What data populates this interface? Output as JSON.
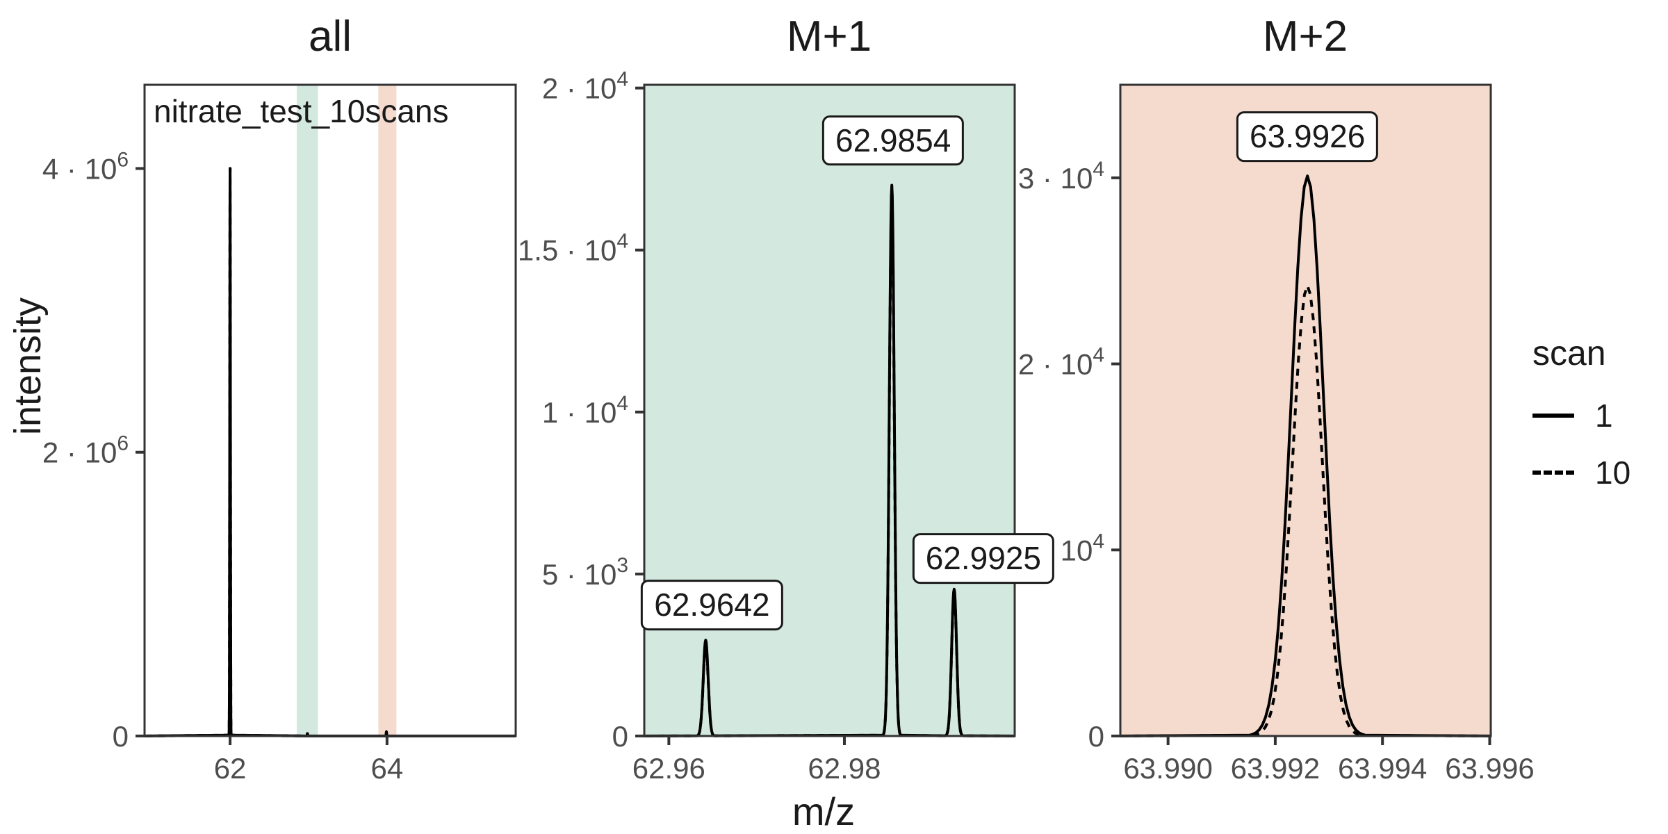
{
  "chart_data": {
    "type": "line",
    "title": "",
    "xlabel": "m/z",
    "ylabel": "intensity",
    "grid": false,
    "legend": {
      "title": "scan",
      "position": "right",
      "entries": [
        {
          "label": "1",
          "linestyle": "solid"
        },
        {
          "label": "10",
          "linestyle": "dashed"
        }
      ]
    },
    "colors": {
      "curve": "#000000",
      "axis_text": "#4d4d4d",
      "panel_border": "#333333",
      "m1_highlight": "#d3e8de",
      "m2_highlight": "#f5dbce",
      "label_box_bg": "#ffffff"
    },
    "panels": [
      {
        "id": "all",
        "title": "all",
        "annotation": "nitrate_test_10scans",
        "background": "#ffffff",
        "x_domain": [
          60.91,
          65.64
        ],
        "y_domain": [
          0,
          4590000
        ],
        "x_ticks": [
          {
            "value": 62,
            "label": "62"
          },
          {
            "value": 64,
            "label": "64"
          }
        ],
        "y_ticks": [
          {
            "value": 0,
            "base": "0",
            "exp": ""
          },
          {
            "value": 2000000,
            "base": "2 · 10",
            "exp": "6"
          },
          {
            "value": 4000000,
            "base": "4 · 10",
            "exp": "6"
          }
        ],
        "bands": [
          {
            "from": 62.85,
            "to": 63.12,
            "color": "#d3e8de"
          },
          {
            "from": 63.89,
            "to": 64.12,
            "color": "#f5dbce"
          }
        ],
        "peaks": [
          {
            "mz": 62.0,
            "scan1": 4000000,
            "scan10": 4000000,
            "sigma": 0.004
          },
          {
            "mz": 62.9854,
            "scan1": 17000,
            "scan10": 16600,
            "sigma": 0.003
          },
          {
            "mz": 63.9926,
            "scan1": 30100,
            "scan10": 24200,
            "sigma": 0.003
          }
        ]
      },
      {
        "id": "M+1",
        "title": "M+1",
        "annotation": "",
        "background": "#d3e8de",
        "x_domain": [
          62.9572,
          62.9994
        ],
        "y_domain": [
          0,
          20100
        ],
        "x_ticks": [
          {
            "value": 62.96,
            "label": "62.96"
          },
          {
            "value": 62.98,
            "label": "62.98"
          }
        ],
        "y_ticks": [
          {
            "value": 0,
            "base": "0",
            "exp": ""
          },
          {
            "value": 5000,
            "base": "5 · 10",
            "exp": "3"
          },
          {
            "value": 10000,
            "base": "1 · 10",
            "exp": "4"
          },
          {
            "value": 15000,
            "base": "1.5 · 10",
            "exp": "4"
          },
          {
            "value": 20000,
            "base": "2 · 10",
            "exp": "4"
          }
        ],
        "bands": [],
        "peaks": [
          {
            "mz": 62.9642,
            "scan1": 2960,
            "scan10": 2870,
            "sigma": 0.00028,
            "label": "62.9642",
            "label_dx": 9,
            "label_gap": 14
          },
          {
            "mz": 62.9854,
            "scan1": 17000,
            "scan10": 16600,
            "sigma": 0.00028,
            "label": "62.9854",
            "label_dx": 2,
            "label_gap": 28
          },
          {
            "mz": 62.9925,
            "scan1": 4530,
            "scan10": 4440,
            "sigma": 0.00028,
            "label": "62.9925",
            "label_dx": 42,
            "label_gap": 8
          }
        ]
      },
      {
        "id": "M+2",
        "title": "M+2",
        "annotation": "",
        "background": "#f5dbce",
        "x_domain": [
          63.98911,
          63.99602
        ],
        "y_domain": [
          0,
          35000
        ],
        "x_ticks": [
          {
            "value": 63.99,
            "label": "63.990"
          },
          {
            "value": 63.992,
            "label": "63.992"
          },
          {
            "value": 63.994,
            "label": "63.994"
          },
          {
            "value": 63.996,
            "label": "63.996"
          }
        ],
        "y_ticks": [
          {
            "value": 0,
            "base": "0",
            "exp": ""
          },
          {
            "value": 10000,
            "base": "1 · 10",
            "exp": "4"
          },
          {
            "value": 20000,
            "base": "2 · 10",
            "exp": "4"
          },
          {
            "value": 30000,
            "base": "3 · 10",
            "exp": "4"
          }
        ],
        "bands": [],
        "peaks": [
          {
            "mz": 63.9926,
            "scan1": 30100,
            "scan10": 24200,
            "sigma": 0.0003,
            "sigma10": 0.00028,
            "label": "63.9926",
            "label_dx": 0,
            "label_gap": 20
          }
        ]
      }
    ]
  }
}
